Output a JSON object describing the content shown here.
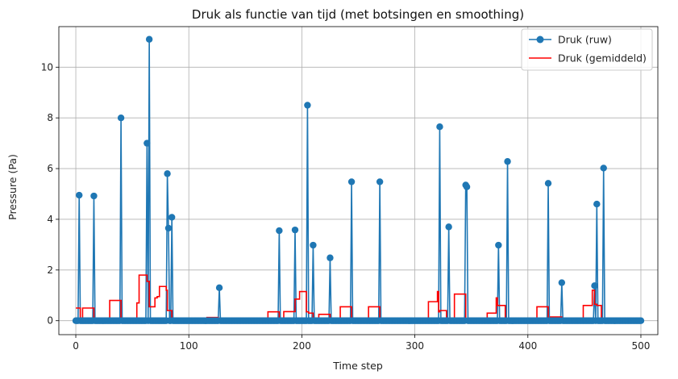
{
  "chart_data": {
    "type": "line",
    "title": "Druk als functie van tijd (met botsingen en smoothing)",
    "xlabel": "Time step",
    "ylabel": "Pressure (Pa)",
    "xlim": [
      -15,
      515
    ],
    "ylim": [
      -0.55,
      11.6
    ],
    "xticks": [
      0,
      100,
      200,
      300,
      400,
      500
    ],
    "yticks": [
      0,
      2,
      4,
      6,
      8,
      10
    ],
    "grid": true,
    "legend_position": "top-right",
    "x_max": 500,
    "series": [
      {
        "name": "Druk (ruw)",
        "color": "#1f77b4",
        "marker": "circle",
        "peaks": [
          [
            3,
            4.95
          ],
          [
            16,
            4.92
          ],
          [
            40,
            8.0
          ],
          [
            63,
            7.0
          ],
          [
            65,
            11.1
          ],
          [
            81,
            5.8
          ],
          [
            82,
            3.65
          ],
          [
            85,
            4.08
          ],
          [
            127,
            1.3
          ],
          [
            180,
            3.55
          ],
          [
            194,
            3.58
          ],
          [
            205,
            8.5
          ],
          [
            210,
            2.98
          ],
          [
            225,
            2.48
          ],
          [
            244,
            5.48
          ],
          [
            269,
            5.48
          ],
          [
            322,
            7.65
          ],
          [
            330,
            3.7
          ],
          [
            345,
            5.35
          ],
          [
            346,
            5.28
          ],
          [
            374,
            2.98
          ],
          [
            382,
            6.28
          ],
          [
            418,
            5.42
          ],
          [
            430,
            1.5
          ],
          [
            459,
            1.38
          ],
          [
            461,
            4.6
          ],
          [
            467,
            6.02
          ]
        ]
      },
      {
        "name": "Druk (gemiddeld)",
        "color": "#ff0000",
        "points": [
          [
            0,
            0.5
          ],
          [
            4,
            0.5
          ],
          [
            4,
            0
          ],
          [
            6,
            0
          ],
          [
            6,
            0.5
          ],
          [
            16,
            0.5
          ],
          [
            16,
            0
          ],
          [
            30,
            0
          ],
          [
            30,
            0.8
          ],
          [
            40,
            0.8
          ],
          [
            40,
            0
          ],
          [
            54,
            0
          ],
          [
            54,
            0.7
          ],
          [
            56,
            0.7
          ],
          [
            56,
            1.8
          ],
          [
            63,
            1.8
          ],
          [
            63,
            1.55
          ],
          [
            65,
            1.55
          ],
          [
            65,
            0.55
          ],
          [
            70,
            0.55
          ],
          [
            70,
            0.9
          ],
          [
            72,
            0.9
          ],
          [
            72,
            0.95
          ],
          [
            74,
            0.95
          ],
          [
            74,
            1.35
          ],
          [
            80,
            1.35
          ],
          [
            80,
            1.2
          ],
          [
            81,
            1.2
          ],
          [
            81,
            0.4
          ],
          [
            85,
            0.4
          ],
          [
            85,
            0
          ],
          [
            116,
            0
          ],
          [
            116,
            0.13
          ],
          [
            126,
            0.13
          ],
          [
            126,
            0
          ],
          [
            170,
            0
          ],
          [
            170,
            0.35
          ],
          [
            180,
            0.35
          ],
          [
            180,
            0
          ],
          [
            184,
            0
          ],
          [
            184,
            0.36
          ],
          [
            194,
            0.36
          ],
          [
            194,
            0.85
          ],
          [
            198,
            0.85
          ],
          [
            198,
            1.15
          ],
          [
            204,
            1.15
          ],
          [
            204,
            0.35
          ],
          [
            206,
            0.35
          ],
          [
            206,
            0.3
          ],
          [
            210,
            0.3
          ],
          [
            210,
            0
          ],
          [
            215,
            0
          ],
          [
            215,
            0.25
          ],
          [
            225,
            0.25
          ],
          [
            225,
            0
          ],
          [
            234,
            0
          ],
          [
            234,
            0.55
          ],
          [
            244,
            0.55
          ],
          [
            244,
            0
          ],
          [
            259,
            0
          ],
          [
            259,
            0.55
          ],
          [
            269,
            0.55
          ],
          [
            269,
            0
          ],
          [
            312,
            0
          ],
          [
            312,
            0.75
          ],
          [
            320,
            0.75
          ],
          [
            320,
            1.15
          ],
          [
            321,
            1.15
          ],
          [
            321,
            0.35
          ],
          [
            322,
            0.35
          ],
          [
            322,
            0.4
          ],
          [
            328,
            0.4
          ],
          [
            328,
            0
          ],
          [
            335,
            0
          ],
          [
            335,
            1.05
          ],
          [
            345,
            1.05
          ],
          [
            345,
            0
          ],
          [
            364,
            0
          ],
          [
            364,
            0.3
          ],
          [
            372,
            0.3
          ],
          [
            372,
            0.9
          ],
          [
            373,
            0.9
          ],
          [
            373,
            0.6
          ],
          [
            380,
            0.6
          ],
          [
            380,
            0
          ],
          [
            408,
            0
          ],
          [
            408,
            0.55
          ],
          [
            418,
            0.55
          ],
          [
            418,
            0
          ],
          [
            420,
            0
          ],
          [
            420,
            0.15
          ],
          [
            430,
            0.15
          ],
          [
            430,
            0
          ],
          [
            449,
            0
          ],
          [
            449,
            0.6
          ],
          [
            457,
            0.6
          ],
          [
            457,
            1.2
          ],
          [
            459,
            1.2
          ],
          [
            459,
            0.65
          ],
          [
            461,
            0.65
          ],
          [
            461,
            0.6
          ],
          [
            465,
            0.6
          ],
          [
            465,
            0
          ],
          [
            490,
            0
          ]
        ]
      }
    ]
  }
}
